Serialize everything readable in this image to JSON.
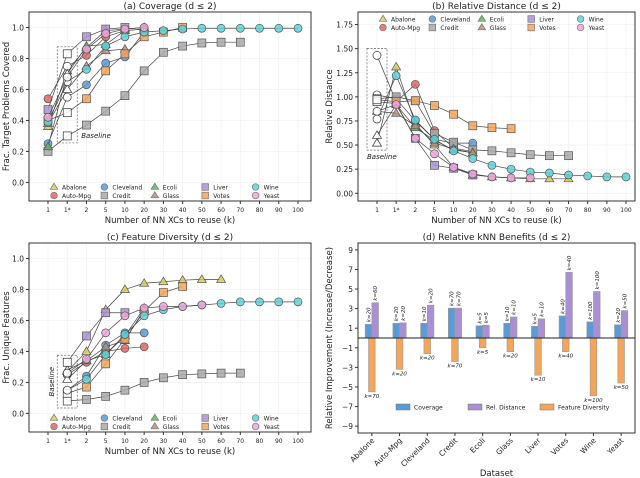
{
  "x_categories": [
    "1",
    "1*",
    "2",
    "5",
    "10",
    "20",
    "30",
    "40",
    "50",
    "60",
    "70",
    "80",
    "90",
    "100"
  ],
  "xlabel": "Number of NN XCs to reuse (k)",
  "baseline_label": "Baseline",
  "datasets": [
    {
      "name": "Abalone",
      "color": "#d8c95e",
      "marker": "triangle"
    },
    {
      "name": "Auto-Mpg",
      "color": "#e06666",
      "marker": "circle"
    },
    {
      "name": "Cleveland",
      "color": "#5b9bd5",
      "marker": "circle"
    },
    {
      "name": "Credit",
      "color": "#a9a9a9",
      "marker": "square"
    },
    {
      "name": "Ecoli",
      "color": "#5cb85c",
      "marker": "triangle"
    },
    {
      "name": "Glass",
      "color": "#b39380",
      "marker": "triangle"
    },
    {
      "name": "Liver",
      "color": "#ab8fd3",
      "marker": "square"
    },
    {
      "name": "Votes",
      "color": "#f5a55a",
      "marker": "square"
    },
    {
      "name": "Wine",
      "color": "#5cd3da",
      "marker": "circle"
    },
    {
      "name": "Yeast",
      "color": "#f2a4dc",
      "marker": "circle"
    }
  ],
  "chart_data": [
    {
      "type": "line",
      "title": "(a) Coverage (d ≤ 2)",
      "ylabel": "Frac. Target Problems Covered",
      "ylim": [
        -0.12,
        1.1
      ],
      "yticks": [
        "0.0",
        "0.2",
        "0.4",
        "0.6",
        "0.8",
        "1.0"
      ],
      "legend": "bottom",
      "grid": true,
      "baseline_x": "1*",
      "series": [
        {
          "name": "Abalone",
          "baseline": 0.72,
          "values": {
            "1": 0.36,
            "2": 0.87,
            "5": 0.98,
            "10": 0.99,
            "20": 1.0
          }
        },
        {
          "name": "Auto-Mpg",
          "baseline": 0.75,
          "values": {
            "1": 0.54,
            "2": 0.82,
            "5": 0.94,
            "10": 0.98,
            "20": 0.99
          }
        },
        {
          "name": "Cleveland",
          "baseline": 0.55,
          "values": {
            "1": 0.25,
            "2": 0.63,
            "5": 0.77,
            "10": 0.81,
            "20": 0.97
          }
        },
        {
          "name": "Credit",
          "baseline": 0.3,
          "values": {
            "1": 0.2,
            "2": 0.37,
            "5": 0.46,
            "10": 0.56,
            "20": 0.72,
            "30": 0.84,
            "40": 0.88,
            "50": 0.9,
            "60": 0.905,
            "70": 0.905
          }
        },
        {
          "name": "Ecoli",
          "baseline": 0.7,
          "values": {
            "1": 0.23,
            "2": 0.88,
            "5": 0.89,
            "10": 0.98,
            "20": 0.99
          }
        },
        {
          "name": "Glass",
          "baseline": 0.6,
          "values": {
            "1": 0.38,
            "2": 0.75,
            "5": 0.85,
            "10": 0.86
          }
        },
        {
          "name": "Liver",
          "baseline": 0.83,
          "values": {
            "1": 0.47,
            "2": 0.94,
            "5": 0.99,
            "10": 1.0
          }
        },
        {
          "name": "Votes",
          "baseline": 0.45,
          "values": {
            "1": 0.4,
            "2": 0.54,
            "5": 0.72,
            "10": 0.83,
            "20": 0.94,
            "30": 0.97,
            "40": 1.0
          }
        },
        {
          "name": "Wine",
          "baseline": 0.65,
          "values": {
            "1": 0.39,
            "2": 0.73,
            "5": 0.88,
            "10": 0.94,
            "20": 0.97,
            "30": 0.98,
            "40": 0.99,
            "50": 0.995,
            "60": 0.995,
            "70": 0.995,
            "80": 0.995,
            "90": 0.995,
            "100": 0.995
          }
        },
        {
          "name": "Yeast",
          "baseline": 0.68,
          "values": {
            "1": 0.42,
            "2": 0.86,
            "5": 0.96,
            "10": 0.99,
            "20": 1.0
          }
        }
      ]
    },
    {
      "type": "line",
      "title": "(b) Relative Distance (d ≤ 2)",
      "ylabel": "Relative Distance",
      "ylim": [
        -0.08,
        1.88
      ],
      "yticks": [
        "0.00",
        "0.25",
        "0.50",
        "0.75",
        "1.00",
        "1.25",
        "1.50",
        "1.75"
      ],
      "legend": "top",
      "grid": true,
      "baseline_x": "1",
      "series": [
        {
          "name": "Abalone",
          "baseline": 0.52,
          "values": {
            "1*": 1.31,
            "2": 0.72,
            "5": 0.5,
            "10": 0.27,
            "20": 0.19,
            "30": 0.17,
            "40": 0.16,
            "50": 0.15,
            "60": 0.15,
            "70": 0.15
          }
        },
        {
          "name": "Auto-Mpg",
          "baseline": 1.43,
          "values": {
            "1*": 0.95,
            "2": 1.13,
            "5": 0.65,
            "10": 0.47,
            "20": 0.43
          }
        },
        {
          "name": "Cleveland",
          "baseline": 1.02,
          "values": {
            "1*": 0.98,
            "2": 0.75,
            "5": 0.56,
            "10": 0.52,
            "20": 0.52
          }
        },
        {
          "name": "Credit",
          "baseline": 0.98,
          "values": {
            "1*": 1.0,
            "2": 0.96,
            "5": 0.62,
            "10": 0.53,
            "20": 0.45,
            "30": 0.44,
            "40": 0.42,
            "50": 0.4,
            "60": 0.39,
            "70": 0.39
          }
        },
        {
          "name": "Ecoli",
          "baseline": 0.6,
          "values": {
            "1*": 0.92,
            "2": 0.68,
            "5": 0.55,
            "10": 0.45,
            "20": 0.42
          }
        },
        {
          "name": "Glass",
          "baseline": 0.85,
          "values": {
            "1*": 0.83,
            "2": 0.7,
            "5": 0.52,
            "10": 0.46,
            "20": 0.42
          }
        },
        {
          "name": "Liver",
          "baseline": 0.95,
          "values": {
            "1*": 0.93,
            "2": 0.57,
            "5": 0.29,
            "10": 0.26,
            "20": 0.19
          }
        },
        {
          "name": "Votes",
          "baseline": 0.97,
          "values": {
            "1*": 0.95,
            "2": 0.96,
            "5": 0.91,
            "10": 0.82,
            "20": 0.7,
            "30": 0.68,
            "40": 0.67
          }
        },
        {
          "name": "Wine",
          "baseline": 0.77,
          "values": {
            "1*": 1.22,
            "2": 0.76,
            "5": 0.56,
            "10": 0.44,
            "20": 0.36,
            "30": 0.29,
            "40": 0.25,
            "50": 0.22,
            "60": 0.21,
            "70": 0.19,
            "80": 0.18,
            "90": 0.17,
            "100": 0.17
          }
        },
        {
          "name": "Yeast",
          "baseline": 0.85,
          "values": {
            "1*": 0.92,
            "2": 0.57,
            "5": 0.41,
            "10": 0.27,
            "20": 0.2,
            "30": 0.17,
            "40": 0.16,
            "50": 0.16
          }
        }
      ]
    },
    {
      "type": "line",
      "title": "(c) Feature Diversity (d ≤ 2)",
      "ylabel": "Frac. Unique Features",
      "ylim": [
        -0.12,
        1.1
      ],
      "yticks": [
        "0.0",
        "0.2",
        "0.4",
        "0.6",
        "0.8",
        "1.0"
      ],
      "legend": "bottom",
      "grid": true,
      "baseline_x": "1*",
      "series": [
        {
          "name": "Abalone",
          "baseline": 0.27,
          "values": {
            "2": 0.4,
            "5": 0.67,
            "10": 0.8,
            "20": 0.84,
            "30": 0.85,
            "40": 0.86,
            "50": 0.865,
            "60": 0.865
          }
        },
        {
          "name": "Auto-Mpg",
          "baseline": 0.25,
          "values": {
            "2": 0.33,
            "5": 0.4,
            "10": 0.42,
            "20": 0.43
          }
        },
        {
          "name": "Cleveland",
          "baseline": 0.15,
          "values": {
            "2": 0.24,
            "5": 0.44,
            "10": 0.52,
            "20": 0.52
          }
        },
        {
          "name": "Credit",
          "baseline": 0.08,
          "values": {
            "2": 0.09,
            "5": 0.11,
            "10": 0.15,
            "20": 0.2,
            "30": 0.23,
            "40": 0.25,
            "50": 0.255,
            "60": 0.26,
            "70": 0.26
          }
        },
        {
          "name": "Ecoli",
          "baseline": 0.22,
          "values": {
            "2": 0.34,
            "5": 0.38,
            "10": 0.5,
            "20": 0.68
          }
        },
        {
          "name": "Glass",
          "baseline": 0.28,
          "values": {
            "2": 0.34,
            "5": 0.43,
            "10": 0.47,
            "20": 0.67
          }
        },
        {
          "name": "Liver",
          "baseline": 0.33,
          "values": {
            "2": 0.5,
            "5": 0.65,
            "10": 0.65
          }
        },
        {
          "name": "Votes",
          "baseline": 0.13,
          "values": {
            "2": 0.17,
            "5": 0.32,
            "10": 0.48,
            "20": 0.66,
            "30": 0.78,
            "40": 0.82
          }
        },
        {
          "name": "Wine",
          "baseline": 0.15,
          "values": {
            "2": 0.22,
            "5": 0.38,
            "10": 0.51,
            "20": 0.63,
            "30": 0.67,
            "40": 0.69,
            "50": 0.7,
            "60": 0.71,
            "70": 0.72,
            "80": 0.72,
            "90": 0.72,
            "100": 0.72
          }
        },
        {
          "name": "Yeast",
          "baseline": 0.26,
          "values": {
            "2": 0.35,
            "5": 0.52,
            "10": 0.63,
            "20": 0.68,
            "30": 0.69,
            "40": 0.69,
            "50": 0.7
          }
        }
      ]
    },
    {
      "type": "bar",
      "title": "(d) Relative kNN Benefits (d ≤ 2)",
      "ylabel": "Relative Improvement (Increase/Decrease)",
      "xlabel": "Dataset",
      "ylim": [
        -9.7,
        9.7
      ],
      "yticks": [
        9,
        7,
        5,
        3,
        1,
        -1,
        -3,
        -5,
        -7,
        -9
      ],
      "legend": "bottom",
      "categories": [
        "Abalone",
        "Auto-Mpg",
        "Cleveland",
        "Credit",
        "Ecoli",
        "Glass",
        "Liver",
        "Votes",
        "Wine",
        "Yeast"
      ],
      "series": [
        {
          "name": "Coverage",
          "color": "#5b9bd5",
          "values": [
            1.4,
            1.5,
            1.5,
            3.05,
            1.25,
            1.5,
            1.2,
            2.25,
            1.65,
            1.35
          ],
          "labels": [
            "k=20",
            "k=20",
            "k=10",
            "k=70",
            "k=5",
            "k=10",
            "k=5",
            "k=40",
            "k=100",
            "k=20"
          ]
        },
        {
          "name": "Rel. Distance",
          "color": "#ab8fd3",
          "values": [
            3.6,
            1.55,
            3.35,
            3.05,
            1.3,
            2.15,
            1.95,
            6.7,
            4.75,
            2.8
          ],
          "labels": [
            "k=60",
            "k=20",
            "k=20",
            "k=70",
            "k=5",
            "k=10",
            "k=10",
            "k=40",
            "k=100",
            "k=50"
          ]
        },
        {
          "name": "Feature Diversity",
          "color": "#f5a55a",
          "values": [
            -5.5,
            -3.2,
            -1.6,
            -2.4,
            -1.0,
            -1.4,
            -3.8,
            -1.4,
            -5.9,
            -4.6
          ],
          "labels": [
            "k=70",
            "k=20",
            "k=20",
            "k=70",
            "k=5",
            "k=20",
            "k=10",
            "k=40",
            "k=100",
            "k=50"
          ]
        }
      ]
    }
  ]
}
